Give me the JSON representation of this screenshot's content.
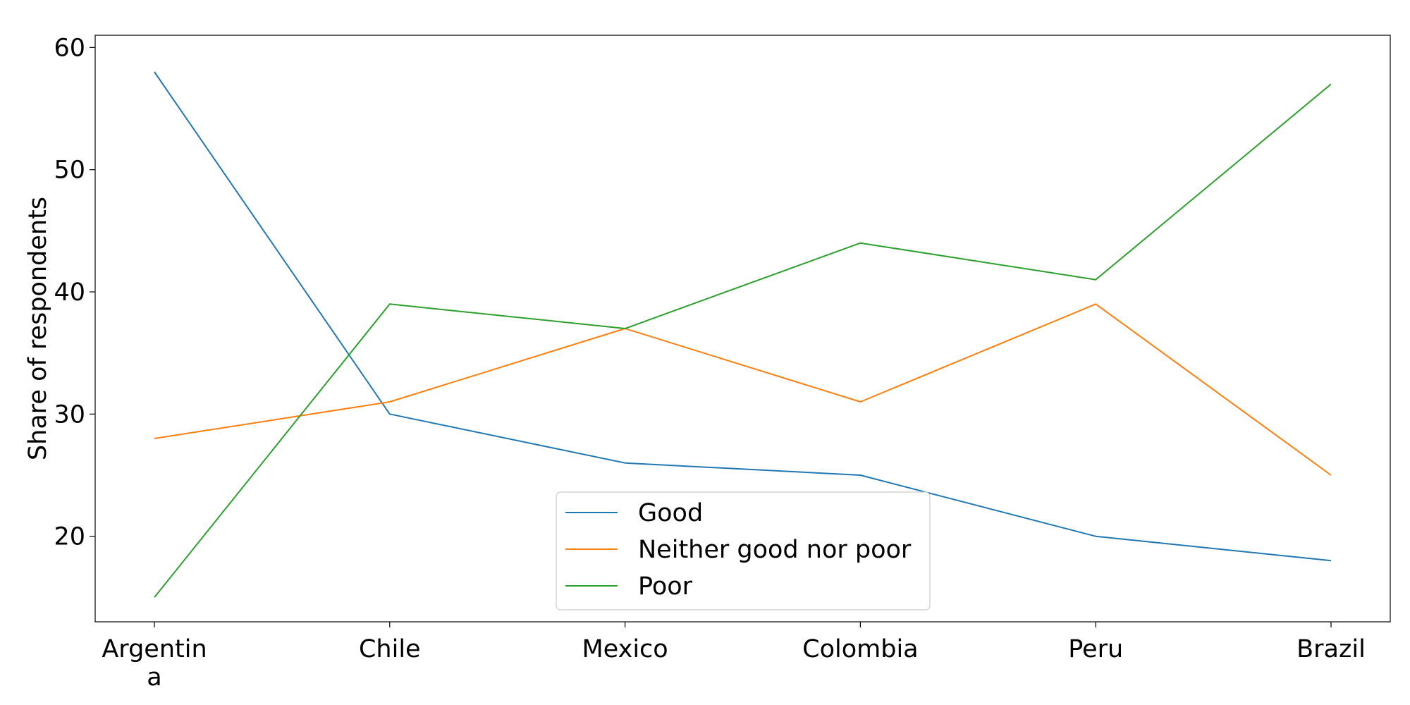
{
  "chart_data": {
    "type": "line",
    "title": "",
    "xlabel": "",
    "ylabel": "Share of respondents",
    "categories": [
      [
        "Argentin",
        "a"
      ],
      [
        "Chile"
      ],
      [
        "Mexico"
      ],
      [
        "Colombia"
      ],
      [
        "Peru"
      ],
      [
        "Brazil"
      ]
    ],
    "y_ticks": [
      20,
      30,
      40,
      50,
      60
    ],
    "ylim": [
      13,
      61
    ],
    "grid": false,
    "legend_position": "bottom-center",
    "series": [
      {
        "name": "Good",
        "color": "#1f77b4",
        "values": [
          58,
          30,
          26,
          25,
          20,
          18
        ]
      },
      {
        "name": "Neither good nor poor",
        "color": "#ff7f0e",
        "values": [
          28,
          31,
          37,
          31,
          39,
          25
        ]
      },
      {
        "name": "Poor",
        "color": "#2ca02c",
        "values": [
          15,
          39,
          37,
          44,
          41,
          57
        ]
      }
    ]
  }
}
